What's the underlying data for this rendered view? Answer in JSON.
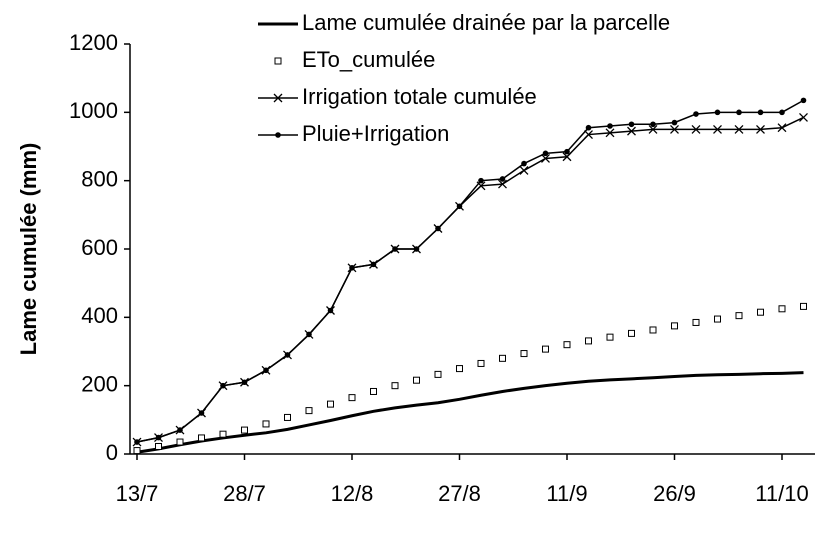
{
  "chart_data": {
    "type": "line",
    "y_label": "Lame cumulée (mm)",
    "categories": [
      "13/7",
      null,
      null,
      null,
      null,
      "28/7",
      null,
      null,
      null,
      null,
      "12/8",
      null,
      null,
      null,
      null,
      "27/8",
      null,
      null,
      null,
      null,
      "11/9",
      null,
      null,
      null,
      null,
      "26/9",
      null,
      null,
      null,
      null,
      "11/10",
      null
    ],
    "ylim": [
      0,
      1200
    ],
    "yticks": [
      0,
      200,
      400,
      600,
      800,
      1000,
      1200
    ],
    "grid": false,
    "legend": "top-right",
    "series": [
      {
        "name": "Lame cumulée drainée par la parcelle",
        "color": "#000000",
        "marker": "none",
        "line": true,
        "values": [
          5,
          15,
          27,
          38,
          47,
          55,
          62,
          72,
          85,
          98,
          112,
          125,
          135,
          143,
          150,
          160,
          172,
          183,
          192,
          200,
          207,
          213,
          217,
          220,
          223,
          227,
          230,
          232,
          233,
          235,
          236,
          238
        ]
      },
      {
        "name": "ETo_cumulée",
        "color": "#000000",
        "marker": "square",
        "line": false,
        "values": [
          10,
          22,
          35,
          47,
          58,
          70,
          88,
          107,
          127,
          146,
          165,
          183,
          200,
          216,
          233,
          250,
          265,
          280,
          294,
          307,
          320,
          331,
          342,
          353,
          363,
          375,
          385,
          395,
          405,
          415,
          425,
          432
        ]
      },
      {
        "name": "Irrigation totale cumulée",
        "color": "#000000",
        "marker": "x",
        "line": true,
        "values": [
          35,
          48,
          70,
          120,
          200,
          210,
          245,
          290,
          350,
          420,
          545,
          555,
          600,
          600,
          660,
          725,
          785,
          790,
          830,
          865,
          870,
          935,
          940,
          945,
          950,
          950,
          950,
          950,
          950,
          950,
          955,
          985
        ]
      },
      {
        "name": "Pluie+Irrigation",
        "color": "#000000",
        "marker": "dot",
        "line": true,
        "values": [
          35,
          48,
          70,
          120,
          200,
          210,
          245,
          290,
          350,
          420,
          545,
          555,
          600,
          600,
          660,
          725,
          800,
          805,
          850,
          880,
          885,
          955,
          960,
          965,
          965,
          970,
          995,
          1000,
          1000,
          1000,
          1000,
          1035
        ]
      }
    ]
  }
}
